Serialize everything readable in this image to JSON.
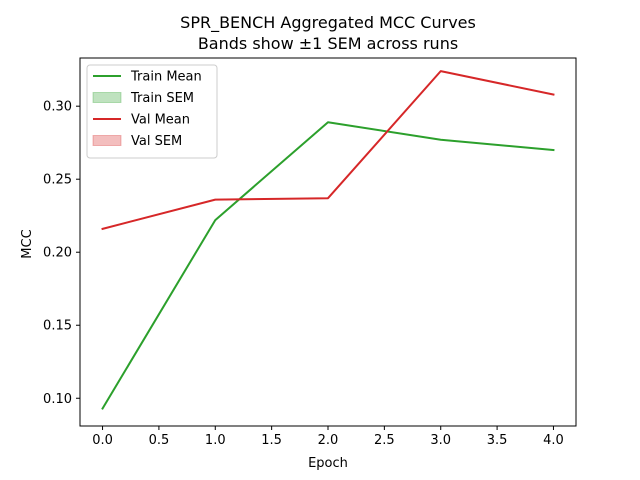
{
  "chart_data": {
    "type": "line",
    "title": "SPR_BENCH Aggregated MCC Curves",
    "subtitle": "Bands show ±1 SEM across runs",
    "xlabel": "Epoch",
    "ylabel": "MCC",
    "xlim": [
      -0.2,
      4.2
    ],
    "ylim": [
      0.081,
      0.333
    ],
    "xticks": [
      0.0,
      0.5,
      1.0,
      1.5,
      2.0,
      2.5,
      3.0,
      3.5,
      4.0
    ],
    "xtick_labels": [
      "0.0",
      "0.5",
      "1.0",
      "1.5",
      "2.0",
      "2.5",
      "3.0",
      "3.5",
      "4.0"
    ],
    "yticks": [
      0.1,
      0.15,
      0.2,
      0.25,
      0.3
    ],
    "ytick_labels": [
      "0.10",
      "0.15",
      "0.20",
      "0.25",
      "0.30"
    ],
    "grid": false,
    "legend_position": "top-left",
    "series": [
      {
        "name": "Train Mean",
        "color": "#2ca02c",
        "x": [
          0,
          1,
          2,
          3,
          4
        ],
        "values": [
          0.093,
          0.222,
          0.289,
          0.277,
          0.27
        ]
      },
      {
        "name": "Val Mean",
        "color": "#d62728",
        "x": [
          0,
          1,
          2,
          3,
          4
        ],
        "values": [
          0.216,
          0.236,
          0.237,
          0.324,
          0.308
        ]
      }
    ],
    "bands": [
      {
        "name": "Train SEM",
        "color": "#2ca02c",
        "alpha": 0.3
      },
      {
        "name": "Val SEM",
        "color": "#d62728",
        "alpha": 0.3
      }
    ],
    "legend": [
      {
        "label": "Train Mean",
        "kind": "line",
        "color": "#2ca02c"
      },
      {
        "label": "Train SEM",
        "kind": "patch",
        "color": "#2ca02c"
      },
      {
        "label": "Val Mean",
        "kind": "line",
        "color": "#d62728"
      },
      {
        "label": "Val SEM",
        "kind": "patch",
        "color": "#d62728"
      }
    ]
  }
}
